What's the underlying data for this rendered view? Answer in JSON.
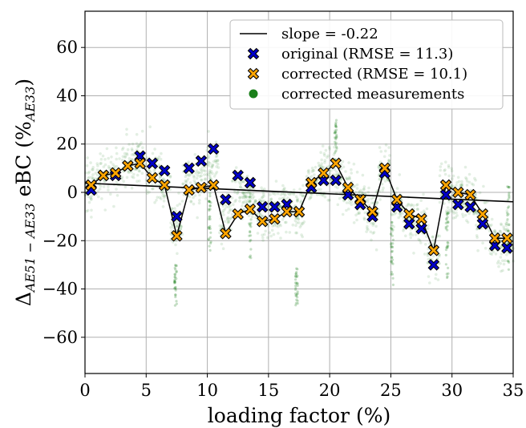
{
  "chart_data": {
    "type": "scatter",
    "xlabel": "loading factor (%)",
    "ylabel": {
      "delta": "Δ",
      "sub1": "AE51",
      "minus": " − ",
      "sub2": "AE33",
      "main": " eBC (%",
      "unitsub": "AE33",
      "close": ")"
    },
    "xlim": [
      0,
      35
    ],
    "ylim": [
      -75,
      75
    ],
    "xticks": [
      0,
      5,
      10,
      15,
      20,
      25,
      30,
      35
    ],
    "yticks": [
      -60,
      -40,
      -20,
      0,
      20,
      40,
      60
    ],
    "grid": true,
    "legend_position": "top-right",
    "colors": {
      "original": "#0000cc",
      "corrected": "#ffa500",
      "measurements": "#1a7f1a",
      "line": "#000000"
    },
    "series": [
      {
        "name": "slope = -0.22",
        "kind": "line",
        "x": [
          0,
          35
        ],
        "y": [
          3.8,
          -3.9
        ]
      },
      {
        "name": "original (RMSE = 11.3)",
        "kind": "marker",
        "x": [
          0.5,
          1.5,
          2.5,
          3.5,
          4.5,
          5.5,
          6.5,
          7.5,
          8.5,
          9.5,
          10.5,
          11.5,
          12.5,
          13.5,
          14.5,
          15.5,
          16.5,
          17.5,
          18.5,
          19.5,
          20.5,
          21.5,
          22.5,
          23.5,
          24.5,
          25.5,
          26.5,
          27.5,
          28.5,
          29.5,
          30.5,
          31.5,
          32.5,
          33.5,
          34.5
        ],
        "y": [
          1,
          7,
          7,
          11,
          15,
          12,
          9,
          -10,
          10,
          13,
          18,
          -3,
          7,
          4,
          -6,
          -6,
          -5,
          -8,
          2,
          5,
          5,
          -1,
          -5,
          -10,
          8,
          -6,
          -13,
          -15,
          -30,
          -1,
          -5,
          -6,
          -13,
          -22,
          -23
        ]
      },
      {
        "name": "corrected (RMSE = 10.1)",
        "kind": "marker",
        "x": [
          0.5,
          1.5,
          2.5,
          3.5,
          4.5,
          5.5,
          6.5,
          7.5,
          8.5,
          9.5,
          10.5,
          11.5,
          12.5,
          13.5,
          14.5,
          15.5,
          16.5,
          17.5,
          18.5,
          19.5,
          20.5,
          21.5,
          22.5,
          23.5,
          24.5,
          25.5,
          26.5,
          27.5,
          28.5,
          29.5,
          30.5,
          31.5,
          32.5,
          33.5,
          34.5
        ],
        "y": [
          3,
          7,
          8,
          11,
          12,
          6,
          3,
          -18,
          1,
          2,
          3,
          -17,
          -9,
          -7,
          -12,
          -11,
          -8,
          -8,
          4,
          8,
          12,
          2,
          -3,
          -8,
          10,
          -3,
          -9,
          -11,
          -24,
          3,
          0,
          -1,
          -9,
          -19,
          -19
        ]
      },
      {
        "name": "corrected measurements",
        "kind": "cloud"
      }
    ]
  }
}
